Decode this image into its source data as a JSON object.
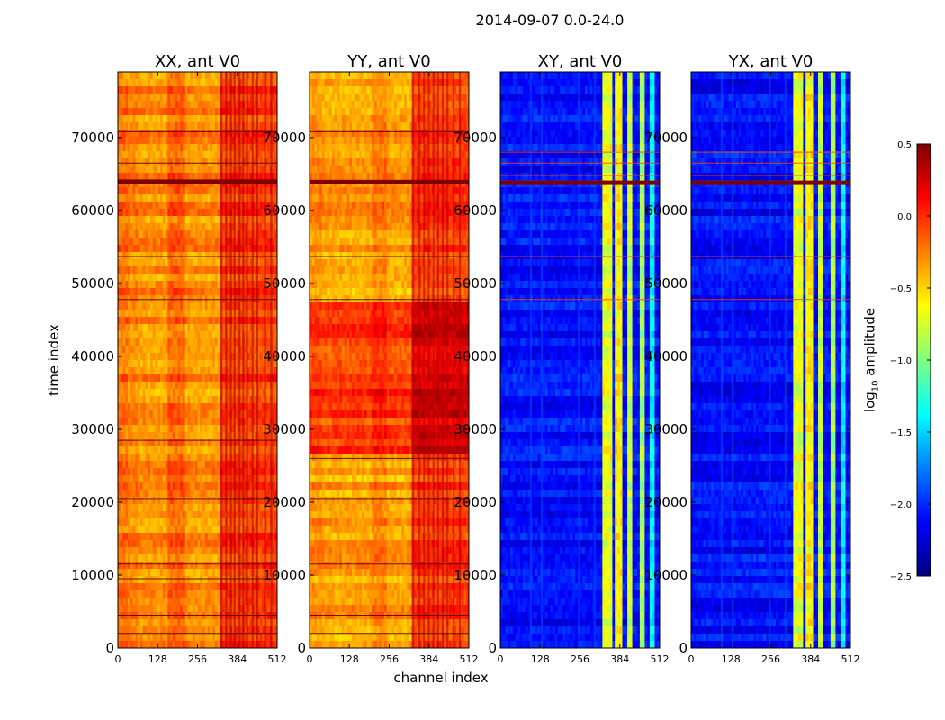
{
  "figure": {
    "suptitle": "2014-09-07 0.0-24.0",
    "xlabel": "channel index",
    "ylabel": "time index",
    "colorbar_label": "log",
    "colorbar_label_sub": "10",
    "colorbar_label_tail": " amplitude"
  },
  "colors": {
    "jet": [
      "#00007f",
      "#0000ff",
      "#007fff",
      "#00ffff",
      "#7fff7f",
      "#ffff00",
      "#ff7f00",
      "#ff0000",
      "#7f0000"
    ],
    "frame": "#000000",
    "background": "#ffffff"
  },
  "chart_data": {
    "type": "heatmap",
    "colormap": "jet",
    "clim": [
      -2.5,
      0.5
    ],
    "xlim": [
      0,
      512
    ],
    "ylim": [
      0,
      79000
    ],
    "xticks": [
      0,
      128,
      256,
      384,
      512
    ],
    "xtick_labels": [
      "0",
      "128",
      "256",
      "384",
      "512"
    ],
    "yticks": [
      0,
      10000,
      20000,
      30000,
      40000,
      50000,
      60000,
      70000
    ],
    "ytick_labels": [
      "0",
      "10000",
      "20000",
      "30000",
      "40000",
      "50000",
      "60000",
      "70000"
    ],
    "colorbar_ticks": [
      0.5,
      0.0,
      -0.5,
      -1.0,
      -1.5,
      -2.0,
      -2.5
    ],
    "colorbar_tick_labels": [
      "0.5",
      "0.0",
      "−0.5",
      "−1.0",
      "−1.5",
      "−2.0",
      "−2.5"
    ],
    "panels": [
      {
        "title": "XX, ant V0",
        "base_level": -0.3,
        "bright_bands": [
          [
            0,
            32,
            0.1
          ],
          [
            32,
            64,
            0.05
          ],
          [
            160,
            215,
            0.15
          ],
          [
            330,
            512,
            0.25
          ]
        ],
        "stripe_channels": [
          330,
          345,
          360,
          372,
          388,
          400,
          412,
          430,
          445,
          470,
          490
        ],
        "flag_rows": [
          2000,
          4500,
          9500,
          11500,
          20500,
          28500,
          47800,
          53700,
          63800,
          64200,
          66500,
          70800
        ],
        "strong_row": 63900
      },
      {
        "title": "YY, ant V0",
        "base_level": -0.35,
        "bright_bands": [
          [
            0,
            40,
            0.05
          ],
          [
            200,
            250,
            0.1
          ],
          [
            330,
            512,
            0.3
          ]
        ],
        "stripe_channels": [
          330,
          350,
          365,
          380,
          395,
          410,
          425,
          440,
          460,
          480
        ],
        "flag_rows": [
          2000,
          4500,
          11500,
          20500,
          26000,
          47800,
          53700,
          63800,
          70800
        ],
        "strong_row": 63900,
        "strong_region": [
          26500,
          47800,
          0.3
        ]
      },
      {
        "title": "XY, ant V0",
        "base_level": -2.1,
        "bright_bands": [
          [
            330,
            360,
            1.4
          ],
          [
            370,
            395,
            1.5
          ],
          [
            405,
            425,
            1.3
          ],
          [
            445,
            465,
            1.2
          ],
          [
            478,
            500,
            0.7
          ]
        ],
        "stripe_channels": [
          95,
          130,
          250,
          300
        ],
        "flag_rows": [
          47800,
          53700,
          63800,
          64800,
          66500,
          68000
        ],
        "strong_row": 63800
      },
      {
        "title": "YX, ant V0",
        "base_level": -2.1,
        "bright_bands": [
          [
            330,
            360,
            1.4
          ],
          [
            370,
            395,
            1.5
          ],
          [
            405,
            425,
            1.3
          ],
          [
            445,
            465,
            1.2
          ],
          [
            478,
            500,
            0.7
          ]
        ],
        "stripe_channels": [
          95,
          130,
          250,
          300
        ],
        "flag_rows": [
          47800,
          53700,
          63800,
          64800,
          66500,
          68000
        ],
        "strong_row": 63800
      }
    ]
  }
}
